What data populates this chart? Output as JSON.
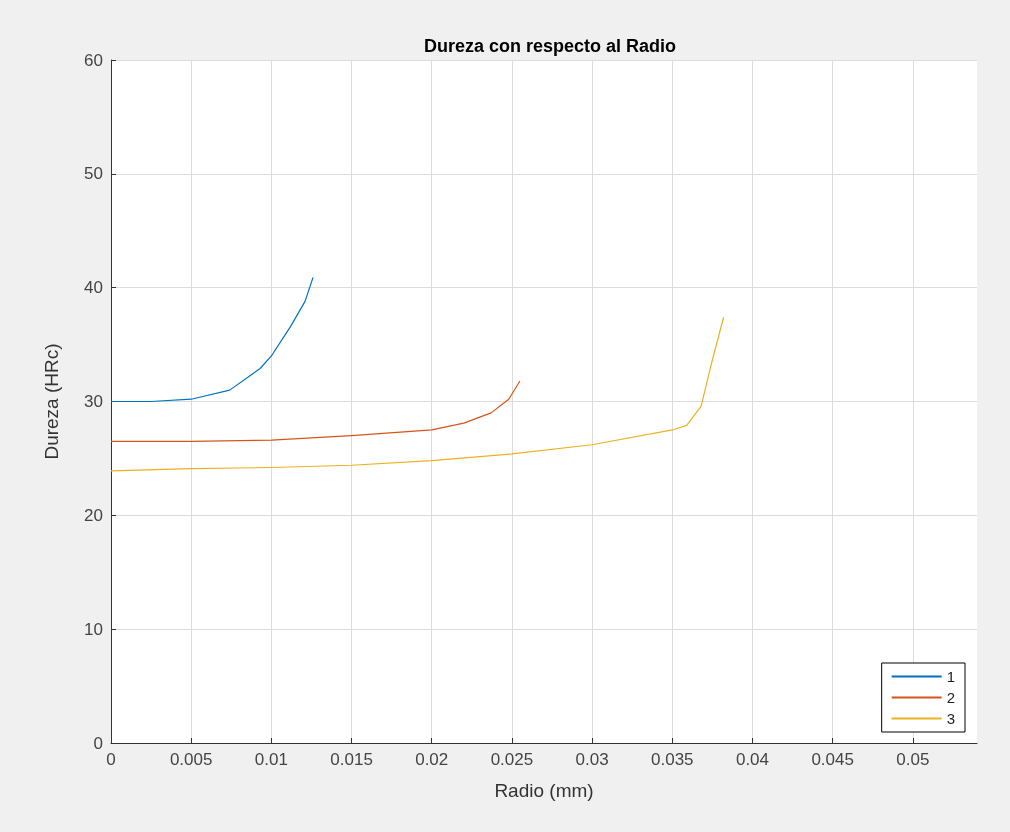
{
  "chart_data": {
    "type": "line",
    "title": "Dureza con respecto al Radio",
    "xlabel": "Radio (mm)",
    "ylabel": "Dureza (HRc)",
    "xlim": [
      0,
      0.054
    ],
    "xticks": [
      0,
      0.005,
      0.01,
      0.015,
      0.02,
      0.025,
      0.03,
      0.035,
      0.04,
      0.045,
      0.05
    ],
    "ylim": [
      0,
      60
    ],
    "yticks": [
      0,
      10,
      20,
      30,
      40,
      50,
      60
    ],
    "grid": true,
    "legend": "bottom right",
    "marker": "none",
    "line_style": "solid",
    "series": [
      {
        "name": "1",
        "color": "#0072bd",
        "x": [
          0,
          0.0025,
          0.005,
          0.0074,
          0.0093,
          0.01,
          0.0112,
          0.0121,
          0.0126
        ],
        "values": [
          30.0,
          30.0,
          30.2,
          31.0,
          32.9,
          34.0,
          36.6,
          38.8,
          40.9
        ]
      },
      {
        "name": "2",
        "color": "#d95319",
        "x": [
          0,
          0.005,
          0.01,
          0.015,
          0.02,
          0.022,
          0.0237,
          0.0248,
          0.0255
        ],
        "values": [
          26.5,
          26.5,
          26.6,
          27.0,
          27.5,
          28.1,
          29.0,
          30.2,
          31.8
        ]
      },
      {
        "name": "3",
        "color": "#edb120",
        "x": [
          0,
          0.005,
          0.01,
          0.015,
          0.02,
          0.025,
          0.03,
          0.035,
          0.0359,
          0.0368,
          0.0374,
          0.0382
        ],
        "values": [
          23.9,
          24.1,
          24.2,
          24.4,
          24.8,
          25.4,
          26.2,
          27.5,
          27.9,
          29.6,
          33.1,
          37.4
        ]
      }
    ]
  }
}
